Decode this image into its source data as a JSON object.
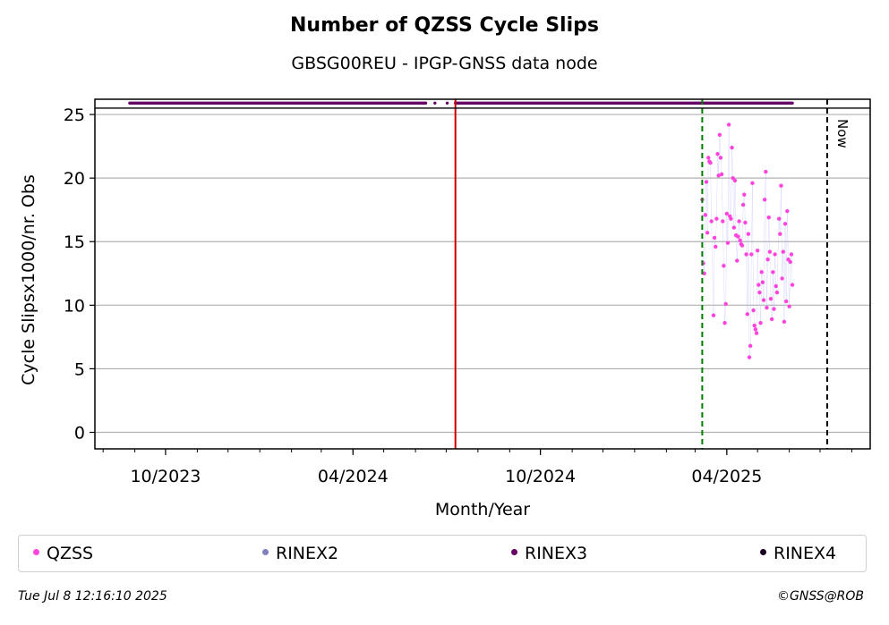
{
  "title": "Number of QZSS Cycle Slips",
  "subtitle": "GBSG00REU - IPGP-GNSS data node",
  "footer": {
    "timestamp": "Tue Jul  8 12:16:10 2025",
    "credit": "©GNSS@ROB"
  },
  "legend": [
    {
      "label": "QZSS",
      "color": "#ff44dd"
    },
    {
      "label": "RINEX2",
      "color": "#8080c0"
    },
    {
      "label": "RINEX3",
      "color": "#660066"
    },
    {
      "label": "RINEX4",
      "color": "#1a0020"
    }
  ],
  "chart_data": {
    "type": "scatter",
    "title": "Number of QZSS Cycle Slips",
    "subtitle": "GBSG00REU - IPGP-GNSS data node",
    "xlabel": "Month/Year",
    "ylabel": "Cycle Slipsx1000/nr. Obs",
    "x_axis_type": "date",
    "xlim": [
      "2023-07-24",
      "2025-08-19"
    ],
    "ylim": [
      -1.3,
      26.2
    ],
    "x_tick_labels": [
      "10/2023",
      "04/2024",
      "10/2024",
      "04/2025"
    ],
    "x_tick_dates": [
      "2023-10-01",
      "2024-04-01",
      "2024-10-01",
      "2025-04-01"
    ],
    "y_ticks": [
      0,
      5,
      10,
      15,
      20,
      25
    ],
    "grid": "horizontal",
    "legend_position": "bottom",
    "markers": [
      {
        "label": "",
        "date": "2024-07-10",
        "color": "#cc0000",
        "style": "solid"
      },
      {
        "label": "",
        "date": "2025-03-08",
        "color": "#008000",
        "style": "dashed"
      },
      {
        "label": "Now",
        "date": "2025-07-08",
        "color": "#000000",
        "style": "dashed"
      }
    ],
    "availability_level": 25.9,
    "series": [
      {
        "name": "QZSS",
        "color": "#ff44dd",
        "points": [
          [
            "2025-03-08",
            18.3
          ],
          [
            "2025-03-09",
            13.3
          ],
          [
            "2025-03-10",
            12.5
          ],
          [
            "2025-03-11",
            17.1
          ],
          [
            "2025-03-12",
            19.7
          ],
          [
            "2025-03-13",
            15.7
          ],
          [
            "2025-03-14",
            21.6
          ],
          [
            "2025-03-15",
            21.3
          ],
          [
            "2025-03-16",
            21.2
          ],
          [
            "2025-03-17",
            16.6
          ],
          [
            "2025-03-19",
            9.2
          ],
          [
            "2025-03-20",
            15.3
          ],
          [
            "2025-03-21",
            14.6
          ],
          [
            "2025-03-22",
            16.8
          ],
          [
            "2025-03-23",
            21.9
          ],
          [
            "2025-03-24",
            20.2
          ],
          [
            "2025-03-25",
            23.4
          ],
          [
            "2025-03-26",
            21.6
          ],
          [
            "2025-03-27",
            20.3
          ],
          [
            "2025-03-28",
            16.6
          ],
          [
            "2025-03-29",
            13.1
          ],
          [
            "2025-03-30",
            8.6
          ],
          [
            "2025-03-31",
            10.1
          ],
          [
            "2025-04-01",
            17.2
          ],
          [
            "2025-04-02",
            14.9
          ],
          [
            "2025-04-03",
            24.2
          ],
          [
            "2025-04-04",
            17.0
          ],
          [
            "2025-04-05",
            16.8
          ],
          [
            "2025-04-06",
            22.4
          ],
          [
            "2025-04-07",
            20.0
          ],
          [
            "2025-04-08",
            16.1
          ],
          [
            "2025-04-09",
            19.8
          ],
          [
            "2025-04-10",
            15.5
          ],
          [
            "2025-04-11",
            13.5
          ],
          [
            "2025-04-12",
            15.4
          ],
          [
            "2025-04-13",
            16.6
          ],
          [
            "2025-04-14",
            15.1
          ],
          [
            "2025-04-15",
            14.8
          ],
          [
            "2025-04-16",
            14.7
          ],
          [
            "2025-04-17",
            17.9
          ],
          [
            "2025-04-18",
            18.7
          ],
          [
            "2025-04-19",
            16.5
          ],
          [
            "2025-04-20",
            14.0
          ],
          [
            "2025-04-21",
            9.3
          ],
          [
            "2025-04-22",
            15.6
          ],
          [
            "2025-04-23",
            5.9
          ],
          [
            "2025-04-24",
            6.8
          ],
          [
            "2025-04-25",
            14.0
          ],
          [
            "2025-04-26",
            19.6
          ],
          [
            "2025-04-27",
            9.6
          ],
          [
            "2025-04-28",
            8.4
          ],
          [
            "2025-04-29",
            8.1
          ],
          [
            "2025-04-30",
            7.8
          ],
          [
            "2025-05-01",
            14.3
          ],
          [
            "2025-05-02",
            11.6
          ],
          [
            "2025-05-03",
            11.0
          ],
          [
            "2025-05-04",
            8.6
          ],
          [
            "2025-05-05",
            12.6
          ],
          [
            "2025-05-06",
            11.8
          ],
          [
            "2025-05-07",
            10.4
          ],
          [
            "2025-05-08",
            18.3
          ],
          [
            "2025-05-09",
            20.5
          ],
          [
            "2025-05-10",
            9.8
          ],
          [
            "2025-05-11",
            13.6
          ],
          [
            "2025-05-12",
            16.9
          ],
          [
            "2025-05-13",
            14.2
          ],
          [
            "2025-05-14",
            10.5
          ],
          [
            "2025-05-15",
            8.9
          ],
          [
            "2025-05-16",
            12.6
          ],
          [
            "2025-05-17",
            9.7
          ],
          [
            "2025-05-18",
            14.0
          ],
          [
            "2025-05-19",
            11.5
          ],
          [
            "2025-05-20",
            11.0
          ],
          [
            "2025-05-22",
            16.8
          ],
          [
            "2025-05-23",
            15.6
          ],
          [
            "2025-05-24",
            19.4
          ],
          [
            "2025-05-25",
            12.1
          ],
          [
            "2025-05-26",
            14.2
          ],
          [
            "2025-05-27",
            8.7
          ],
          [
            "2025-05-28",
            16.4
          ],
          [
            "2025-05-29",
            10.3
          ],
          [
            "2025-05-30",
            17.4
          ],
          [
            "2025-05-31",
            13.6
          ],
          [
            "2025-06-01",
            9.9
          ],
          [
            "2025-06-02",
            13.4
          ],
          [
            "2025-06-03",
            14.0
          ],
          [
            "2025-06-04",
            11.6
          ]
        ]
      },
      {
        "name": "RINEX3",
        "color": "#660066",
        "y": 25.9,
        "coverage": [
          [
            "2023-08-27",
            "2024-06-11"
          ],
          [
            "2024-07-10",
            "2025-06-04"
          ]
        ],
        "isolated_dates": [
          "2024-06-20",
          "2024-07-02"
        ]
      }
    ]
  }
}
